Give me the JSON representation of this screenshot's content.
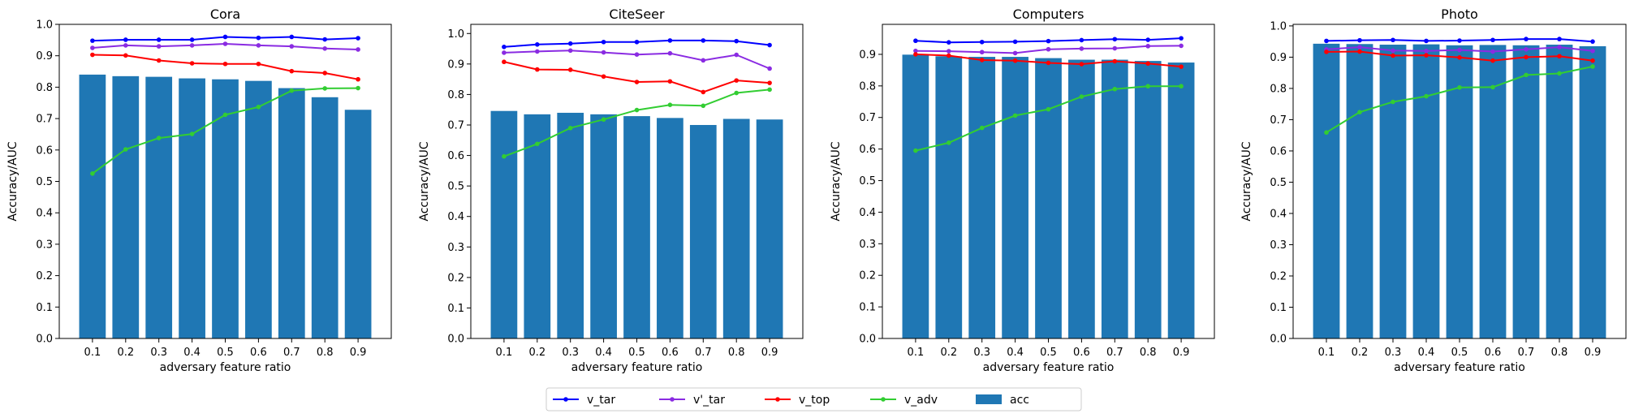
{
  "figure": {
    "legend": {
      "placement": "bottom-center",
      "entries": [
        {
          "label": "v_tar",
          "color": "#0000ff",
          "kind": "line"
        },
        {
          "label": "v'_tar",
          "color": "#8a2be2",
          "kind": "line"
        },
        {
          "label": "v_top",
          "color": "#ff0000",
          "kind": "line"
        },
        {
          "label": "v_adv",
          "color": "#32cd32",
          "kind": "line"
        },
        {
          "label": "acc",
          "color": "#1f77b4",
          "kind": "bar"
        }
      ]
    }
  },
  "chart_data": [
    {
      "type": "bar",
      "title": "Cora",
      "xlabel": "adversary feature ratio",
      "ylabel": "Accuracy/AUC",
      "categories": [
        "0.1",
        "0.2",
        "0.3",
        "0.4",
        "0.5",
        "0.6",
        "0.7",
        "0.8",
        "0.9"
      ],
      "ylim": [
        0,
        1.0
      ],
      "yticks": [
        "0.0",
        "0.1",
        "0.2",
        "0.3",
        "0.4",
        "0.5",
        "0.6",
        "0.7",
        "0.8",
        "0.9",
        "1.0"
      ],
      "bars": {
        "name": "acc",
        "color": "#1f77b4",
        "values": [
          0.84,
          0.835,
          0.833,
          0.828,
          0.825,
          0.82,
          0.797,
          0.768,
          0.728
        ]
      },
      "series": [
        {
          "name": "v_tar",
          "color": "#0000ff",
          "values": [
            0.948,
            0.951,
            0.951,
            0.951,
            0.96,
            0.957,
            0.96,
            0.952,
            0.956
          ]
        },
        {
          "name": "v'_tar",
          "color": "#8a2be2",
          "values": [
            0.925,
            0.933,
            0.93,
            0.933,
            0.938,
            0.933,
            0.93,
            0.923,
            0.92
          ]
        },
        {
          "name": "v_top",
          "color": "#ff0000",
          "values": [
            0.903,
            0.901,
            0.885,
            0.876,
            0.874,
            0.874,
            0.851,
            0.845,
            0.825
          ]
        },
        {
          "name": "v_adv",
          "color": "#32cd32",
          "values": [
            0.525,
            0.602,
            0.638,
            0.651,
            0.712,
            0.737,
            0.789,
            0.796,
            0.797
          ]
        }
      ]
    },
    {
      "type": "bar",
      "title": "CiteSeer",
      "xlabel": "adversary feature ratio",
      "ylabel": "Accuracy/AUC",
      "categories": [
        "0.1",
        "0.2",
        "0.3",
        "0.4",
        "0.5",
        "0.6",
        "0.7",
        "0.8",
        "0.9"
      ],
      "ylim": [
        0,
        1.03
      ],
      "yticks": [
        "0.0",
        "0.1",
        "0.2",
        "0.3",
        "0.4",
        "0.5",
        "0.6",
        "0.7",
        "0.8",
        "0.9",
        "1.0"
      ],
      "bars": {
        "name": "acc",
        "color": "#1f77b4",
        "values": [
          0.746,
          0.735,
          0.74,
          0.735,
          0.729,
          0.723,
          0.7,
          0.72,
          0.718
        ]
      },
      "series": [
        {
          "name": "v_tar",
          "color": "#0000ff",
          "values": [
            0.956,
            0.964,
            0.967,
            0.972,
            0.972,
            0.977,
            0.977,
            0.975,
            0.962
          ]
        },
        {
          "name": "v'_tar",
          "color": "#8a2be2",
          "values": [
            0.937,
            0.941,
            0.944,
            0.938,
            0.931,
            0.935,
            0.912,
            0.93,
            0.885
          ]
        },
        {
          "name": "v_top",
          "color": "#ff0000",
          "values": [
            0.907,
            0.882,
            0.881,
            0.859,
            0.841,
            0.843,
            0.808,
            0.846,
            0.838
          ]
        },
        {
          "name": "v_adv",
          "color": "#32cd32",
          "values": [
            0.597,
            0.638,
            0.69,
            0.718,
            0.749,
            0.766,
            0.763,
            0.805,
            0.816
          ]
        }
      ]
    },
    {
      "type": "bar",
      "title": "Computers",
      "xlabel": "adversary feature ratio",
      "ylabel": "Accuracy/AUC",
      "categories": [
        "0.1",
        "0.2",
        "0.3",
        "0.4",
        "0.5",
        "0.6",
        "0.7",
        "0.8",
        "0.9"
      ],
      "ylim": [
        0,
        0.995
      ],
      "yticks": [
        "0.0",
        "0.1",
        "0.2",
        "0.3",
        "0.4",
        "0.5",
        "0.6",
        "0.7",
        "0.8",
        "0.9"
      ],
      "bars": {
        "name": "acc",
        "color": "#1f77b4",
        "values": [
          0.899,
          0.894,
          0.892,
          0.892,
          0.888,
          0.883,
          0.883,
          0.879,
          0.874
        ]
      },
      "series": [
        {
          "name": "v_tar",
          "color": "#0000ff",
          "values": [
            0.943,
            0.938,
            0.939,
            0.94,
            0.942,
            0.945,
            0.948,
            0.946,
            0.951
          ]
        },
        {
          "name": "v'_tar",
          "color": "#8a2be2",
          "values": [
            0.911,
            0.91,
            0.907,
            0.904,
            0.916,
            0.918,
            0.919,
            0.926,
            0.927
          ]
        },
        {
          "name": "v_top",
          "color": "#ff0000",
          "values": [
            0.9,
            0.896,
            0.882,
            0.88,
            0.873,
            0.869,
            0.878,
            0.871,
            0.861
          ]
        },
        {
          "name": "v_adv",
          "color": "#32cd32",
          "values": [
            0.595,
            0.62,
            0.667,
            0.706,
            0.726,
            0.766,
            0.79,
            0.799,
            0.799
          ]
        }
      ]
    },
    {
      "type": "bar",
      "title": "Photo",
      "xlabel": "adversary feature ratio",
      "ylabel": "Accuracy/AUC",
      "categories": [
        "0.1",
        "0.2",
        "0.3",
        "0.4",
        "0.5",
        "0.6",
        "0.7",
        "0.8",
        "0.9"
      ],
      "ylim": [
        0,
        1.005
      ],
      "yticks": [
        "0.0",
        "0.1",
        "0.2",
        "0.3",
        "0.4",
        "0.5",
        "0.6",
        "0.7",
        "0.8",
        "0.9",
        "1.0"
      ],
      "bars": {
        "name": "acc",
        "color": "#1f77b4",
        "values": [
          0.943,
          0.942,
          0.94,
          0.941,
          0.938,
          0.939,
          0.938,
          0.94,
          0.935
        ]
      },
      "series": [
        {
          "name": "v_tar",
          "color": "#0000ff",
          "values": [
            0.952,
            0.954,
            0.955,
            0.952,
            0.953,
            0.955,
            0.958,
            0.958,
            0.95
          ]
        },
        {
          "name": "v'_tar",
          "color": "#8a2be2",
          "values": [
            0.925,
            0.932,
            0.921,
            0.92,
            0.923,
            0.918,
            0.925,
            0.932,
            0.92
          ]
        },
        {
          "name": "v_top",
          "color": "#ff0000",
          "values": [
            0.917,
            0.918,
            0.905,
            0.906,
            0.899,
            0.889,
            0.9,
            0.903,
            0.889
          ]
        },
        {
          "name": "v_adv",
          "color": "#32cd32",
          "values": [
            0.659,
            0.724,
            0.757,
            0.775,
            0.803,
            0.804,
            0.843,
            0.848,
            0.87
          ]
        }
      ]
    }
  ]
}
